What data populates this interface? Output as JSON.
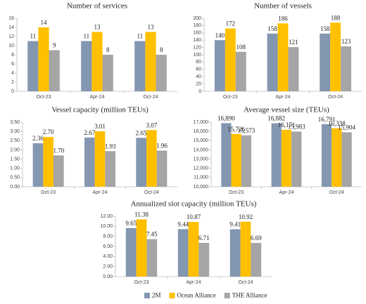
{
  "chart_data": [
    {
      "type": "bar",
      "title": "Number of services",
      "categories": [
        "Oct-23",
        "Apr-24",
        "Oct-24"
      ],
      "series": [
        {
          "name": "2M",
          "color": "#8497b0",
          "values": [
            11,
            11,
            11
          ]
        },
        {
          "name": "Ocean Alliance",
          "color": "#ffc000",
          "values": [
            14,
            13,
            13
          ]
        },
        {
          "name": "THE Alliance",
          "color": "#a5a5a5",
          "values": [
            9,
            8,
            8
          ]
        }
      ],
      "ylim": [
        0,
        16
      ],
      "yticks": [
        0,
        2,
        4,
        6,
        8,
        10,
        12,
        14,
        16
      ]
    },
    {
      "type": "bar",
      "title": "Number of vessels",
      "categories": [
        "Oct-23",
        "Apr-24",
        "Oct-24"
      ],
      "series": [
        {
          "name": "2M",
          "color": "#8497b0",
          "values": [
            140,
            158,
            158
          ]
        },
        {
          "name": "Ocean Alliance",
          "color": "#ffc000",
          "values": [
            172,
            186,
            188
          ]
        },
        {
          "name": "THE Alliance",
          "color": "#a5a5a5",
          "values": [
            108,
            121,
            123
          ]
        }
      ],
      "ylim": [
        0,
        200
      ],
      "yticks": [
        0,
        20,
        40,
        60,
        80,
        100,
        120,
        140,
        160,
        180,
        200
      ]
    },
    {
      "type": "bar",
      "title": "Vessel capacity (million  TEUs)",
      "categories": [
        "Oct-23",
        "Apr-24",
        "Oct-24"
      ],
      "series": [
        {
          "name": "2M",
          "color": "#8497b0",
          "values": [
            2.36,
            2.67,
            2.65
          ],
          "value_labels": [
            "2.36",
            "2.67",
            "2.65"
          ]
        },
        {
          "name": "Ocean Alliance",
          "color": "#ffc000",
          "values": [
            2.7,
            3.01,
            3.07
          ],
          "value_labels": [
            "2.70",
            "3.01",
            "3.07"
          ]
        },
        {
          "name": "THE Alliance",
          "color": "#a5a5a5",
          "values": [
            1.7,
            1.93,
            1.96
          ],
          "value_labels": [
            "1.70",
            "1.93",
            "1.96"
          ]
        }
      ],
      "ylim": [
        0,
        3.5
      ],
      "yticks": [
        {
          "value": 0,
          "label": "0.00"
        },
        {
          "value": 0.5,
          "label": "0.50"
        },
        {
          "value": 1,
          "label": "1.00"
        },
        {
          "value": 1.5,
          "label": "1.50"
        },
        {
          "value": 2,
          "label": "2.00"
        },
        {
          "value": 2.5,
          "label": "2.50"
        },
        {
          "value": 3,
          "label": "3.00"
        },
        {
          "value": 3.5,
          "label": "3.50"
        }
      ]
    },
    {
      "type": "bar",
      "title": "Average vessel size (TEUs)",
      "categories": [
        "Oct-23",
        "Apr-24",
        "Oct-24"
      ],
      "series": [
        {
          "name": "2M",
          "color": "#8497b0",
          "values": [
            16890,
            16882,
            16791
          ],
          "value_labels": [
            "16,890",
            "16,882",
            "16,791"
          ]
        },
        {
          "name": "Ocean Alliance",
          "color": "#ffc000",
          "values": [
            15726,
            16171,
            16338
          ],
          "value_labels": [
            "15,726",
            "16,171",
            "16,338"
          ]
        },
        {
          "name": "THE Alliance",
          "color": "#a5a5a5",
          "values": [
            15573,
            15983,
            15904
          ],
          "value_labels": [
            "15,573",
            "15,983",
            "15,904"
          ]
        }
      ],
      "ylim": [
        10000,
        17000
      ],
      "yticks": [
        {
          "value": 10000,
          "label": "10,000"
        },
        {
          "value": 11000,
          "label": "11,000"
        },
        {
          "value": 12000,
          "label": "12,000"
        },
        {
          "value": 13000,
          "label": "13,000"
        },
        {
          "value": 14000,
          "label": "14,000"
        },
        {
          "value": 15000,
          "label": "15,000"
        },
        {
          "value": 16000,
          "label": "16,000"
        },
        {
          "value": 17000,
          "label": "17,000"
        }
      ]
    },
    {
      "type": "bar",
      "title": "Annualized slot capacity (million TEUs)",
      "categories": [
        "Oct-23",
        "Apr-24",
        "Oct-24"
      ],
      "series": [
        {
          "name": "2M",
          "color": "#8497b0",
          "values": [
            9.65,
            9.44,
            9.41
          ],
          "value_labels": [
            "9.65",
            "9.44",
            "9.41"
          ]
        },
        {
          "name": "Ocean Alliance",
          "color": "#ffc000",
          "values": [
            11.38,
            10.87,
            10.92
          ],
          "value_labels": [
            "11.38",
            "10.87",
            "10.92"
          ]
        },
        {
          "name": "THE Alliance",
          "color": "#a5a5a5",
          "values": [
            7.45,
            6.71,
            6.69
          ],
          "value_labels": [
            "7.45",
            "6.71",
            "6.69"
          ]
        }
      ],
      "ylim": [
        0,
        12
      ],
      "yticks": [
        {
          "value": 0,
          "label": "0.00"
        },
        {
          "value": 2,
          "label": "2.00"
        },
        {
          "value": 4,
          "label": "4.00"
        },
        {
          "value": 6,
          "label": "6.00"
        },
        {
          "value": 8,
          "label": "8.00"
        },
        {
          "value": 10,
          "label": "10.00"
        },
        {
          "value": 12,
          "label": "12.00"
        }
      ]
    }
  ]
}
